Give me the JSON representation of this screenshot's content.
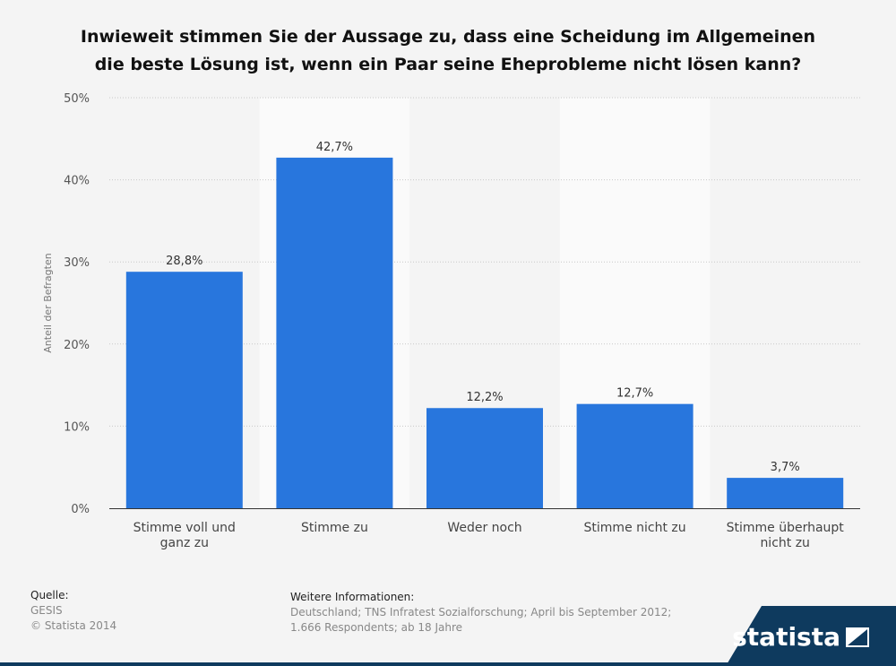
{
  "title": {
    "line1": "Inwieweit stimmen Sie der Aussage zu, dass eine Scheidung im Allgemeinen",
    "line2": "die beste Lösung ist, wenn ein Paar seine Eheprobleme nicht lösen kann?"
  },
  "chart_data": {
    "type": "bar",
    "ylabel": "Anteil der Befragten",
    "ylim": [
      0,
      50
    ],
    "yticks": [
      "0%",
      "10%",
      "20%",
      "30%",
      "40%",
      "50%"
    ],
    "categories": [
      [
        "Stimme voll und",
        "ganz zu"
      ],
      [
        "Stimme zu"
      ],
      [
        "Weder noch"
      ],
      [
        "Stimme nicht zu"
      ],
      [
        "Stimme überhaupt",
        "nicht zu"
      ]
    ],
    "values": [
      28.8,
      42.7,
      12.2,
      12.7,
      3.7
    ],
    "value_labels": [
      "28,8%",
      "42,7%",
      "12,2%",
      "12,7%",
      "3,7%"
    ],
    "bar_color": "#2876dd",
    "grid": true
  },
  "footer": {
    "source_heading": "Quelle:",
    "source_lines": [
      "GESIS",
      "© Statista 2014"
    ],
    "info_heading": "Weitere Informationen:",
    "info_lines": [
      "Deutschland; TNS Infratest Sozialforschung; April bis September 2012;",
      "1.666 Respondents; ab 18 Jahre"
    ]
  },
  "logo": {
    "text": "statista",
    "color": "#0e3a5e"
  }
}
